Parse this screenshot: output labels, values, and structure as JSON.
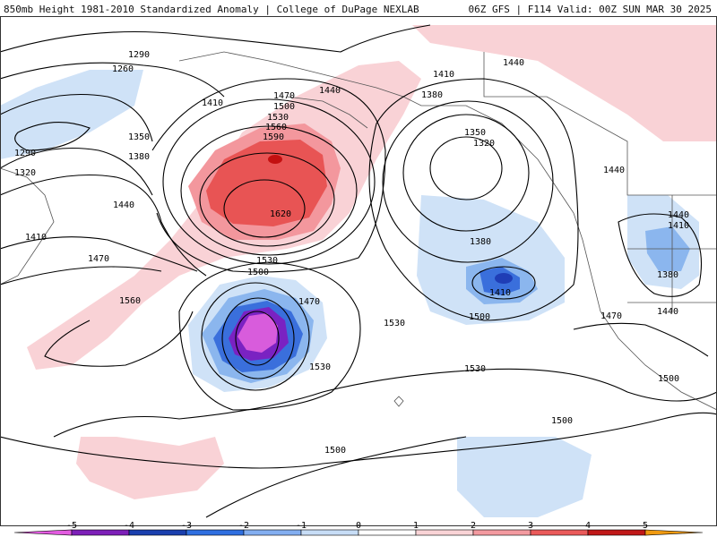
{
  "header": {
    "left": "850mb Height 1981-2010 Standardized Anomaly | College of DuPage NEXLAB",
    "right": "06Z GFS | F114 Valid: 00Z SUN MAR 30 2025"
  },
  "contour_labels": [
    "1290",
    "1260",
    "1290",
    "1320",
    "1350",
    "1380",
    "1410",
    "1440",
    "1410",
    "1470",
    "1470",
    "1500",
    "1530",
    "1560",
    "1590",
    "1620",
    "1440",
    "1410",
    "1380",
    "1350",
    "1320",
    "1380",
    "1410",
    "1500",
    "1440",
    "1530",
    "1500",
    "1470",
    "1560",
    "1530",
    "1530",
    "1530",
    "1500",
    "1500",
    "1440",
    "1440",
    "1410",
    "1380",
    "1470",
    "1440",
    "1500"
  ],
  "colorbar": {
    "ticks": [
      "-5",
      "-4",
      "-3",
      "-2",
      "-1",
      "0",
      "1",
      "2",
      "3",
      "4",
      "5"
    ],
    "colors": [
      "#e25be0",
      "#7d1fb8",
      "#1a3fae",
      "#2f6fe0",
      "#83aef0",
      "#c7ddf6",
      "#ffffff",
      "#f9d3d6",
      "#f39aa0",
      "#ea5a5a",
      "#c01818",
      "#f09a10"
    ]
  },
  "shading_colors": {
    "neg1": "#cfe2f7",
    "neg2": "#8bb6ee",
    "neg3": "#3a6fdc",
    "neg4": "#1f3db6",
    "neg5": "#7a22c2",
    "neg6": "#d85cdc",
    "pos1": "#f9d2d6",
    "pos2": "#f3979d",
    "pos3": "#e85454",
    "pos4": "#c31010"
  }
}
